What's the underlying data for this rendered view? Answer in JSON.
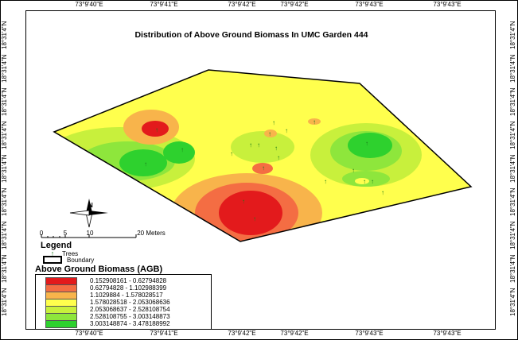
{
  "title": "Distribution of Above Ground Biomass In UMC Garden 444",
  "graticule": {
    "top_labels": [
      "73°9'40\"E",
      "73°9'41\"E",
      "73°9'42\"E",
      "73°9'42\"E",
      "73°9'43\"E",
      "73°9'43\"E"
    ],
    "bottom_labels": [
      "73°9'40\"E",
      "73°9'41\"E",
      "73°9'42\"E",
      "73°9'42\"E",
      "73°9'43\"E",
      "73°9'43\"E"
    ],
    "left_labels": [
      "18°31'4\"N",
      "18°31'4\"N",
      "18°31'4\"N",
      "18°31'4\"N",
      "18°31'4\"N",
      "18°31'4\"N",
      "18°31'4\"N",
      "18°31'4\"N",
      "18°31'4\"N"
    ],
    "right_labels": [
      "18°31'4\"N",
      "18°31'4\"N",
      "18°31'4\"N",
      "18°31'4\"N",
      "18°31'4\"N",
      "18°31'4\"N",
      "18°31'4\"N",
      "18°31'4\"N",
      "18°31'4\"N"
    ]
  },
  "north_arrow": {
    "label": "N"
  },
  "scale_bar": {
    "labels": [
      "0",
      "5",
      "10",
      "20 Meters"
    ]
  },
  "legend": {
    "title": "Legend",
    "items": [
      {
        "label": "Trees",
        "symbol": "tree-icon"
      },
      {
        "label": "Boundary",
        "symbol": "boundary-box"
      }
    ]
  },
  "agb_legend": {
    "title": "Above Ground Biomass (AGB)",
    "classes": [
      {
        "label": "0.152908161 - 0.62794828",
        "color": "#e31a1c"
      },
      {
        "label": "0.62794828 - 1.102988399",
        "color": "#f46d43"
      },
      {
        "label": "1.1029884 - 1.578028517",
        "color": "#f8b44b"
      },
      {
        "label": "1.578028518 - 2.053068636",
        "color": "#ffff4d"
      },
      {
        "label": "2.053068637 - 2.528108754",
        "color": "#c8f03c"
      },
      {
        "label": "2.528108755 - 3.003148873",
        "color": "#8ee63c"
      },
      {
        "label": "3.003148874 - 3.478188992",
        "color": "#2ed12e"
      }
    ]
  }
}
